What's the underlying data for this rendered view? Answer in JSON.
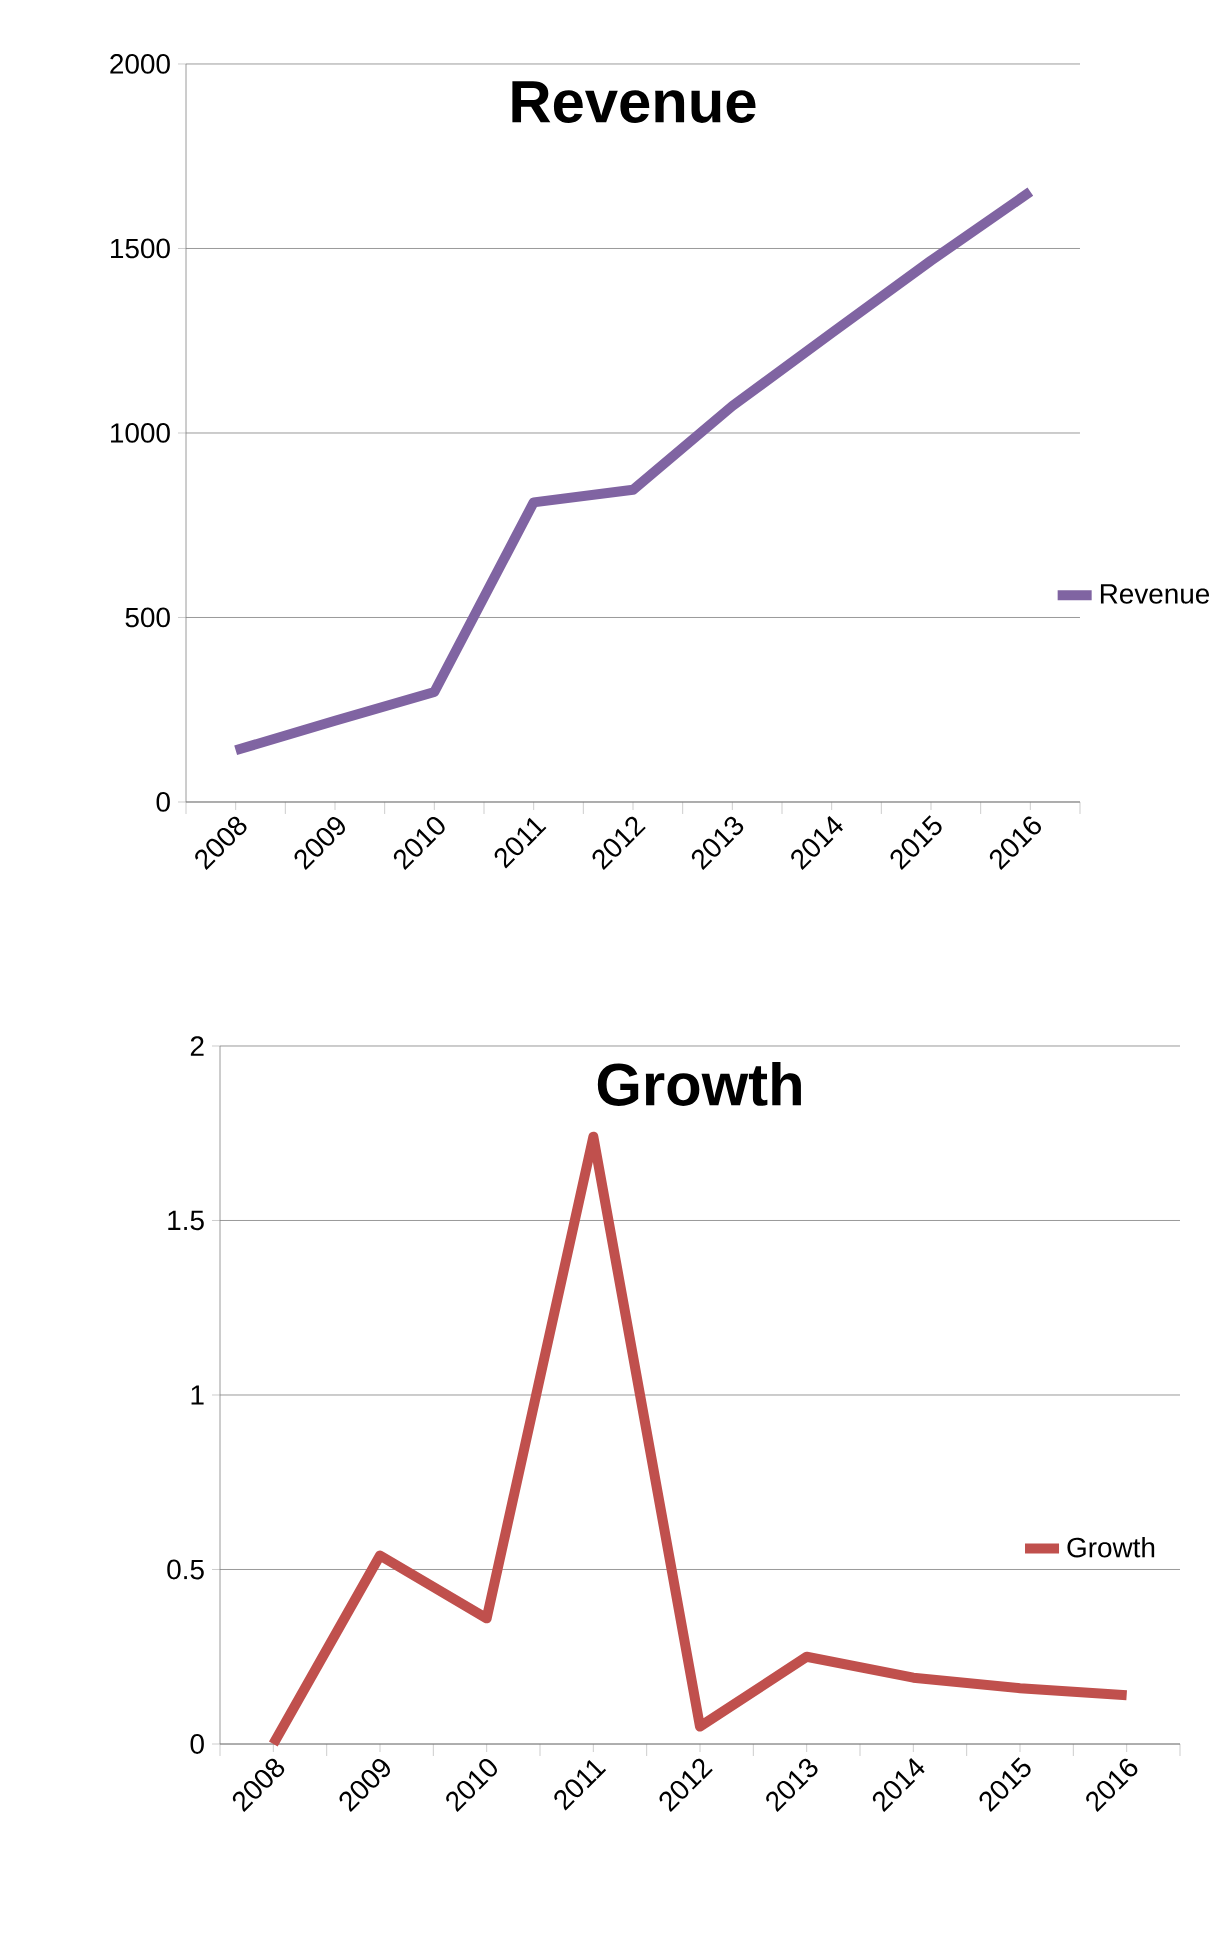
{
  "chart_data": [
    {
      "type": "line",
      "title": "Revenue",
      "categories": [
        "2008",
        "2009",
        "2010",
        "2011",
        "2012",
        "2013",
        "2014",
        "2015",
        "2016"
      ],
      "series": [
        {
          "name": "Revenue",
          "color": "#8064a2",
          "values": [
            140,
            220,
            298,
            812,
            846,
            1073,
            1271,
            1467,
            1654
          ]
        }
      ],
      "ylim": [
        0,
        2000
      ],
      "yticks": [
        0,
        500,
        1000,
        1500,
        2000
      ],
      "grid": "y",
      "legend": "right"
    },
    {
      "type": "line",
      "title": "Growth",
      "categories": [
        "2008",
        "2009",
        "2010",
        "2011",
        "2012",
        "2013",
        "2014",
        "2015",
        "2016"
      ],
      "series": [
        {
          "name": "Growth",
          "color": "#c0504d",
          "values": [
            0,
            0.54,
            0.36,
            1.74,
            0.05,
            0.25,
            0.19,
            0.16,
            0.14
          ]
        }
      ],
      "ylim": [
        0,
        2
      ],
      "yticks": [
        0,
        0.5,
        1,
        1.5,
        2
      ],
      "grid": "y",
      "legend": "right"
    }
  ]
}
